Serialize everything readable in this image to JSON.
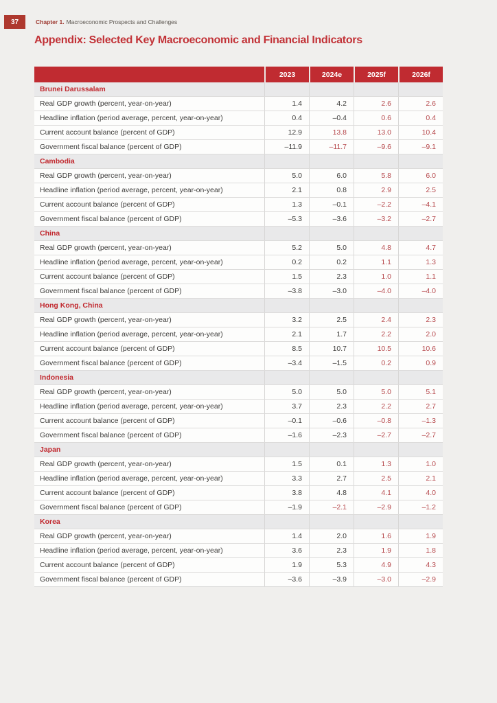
{
  "page": {
    "number": "37",
    "chapter_label": "Chapter 1.",
    "chapter_title": "Macroeconomic Prospects and Challenges",
    "title": "Appendix: Selected Key Macroeconomic and Financial Indicators"
  },
  "colors": {
    "header_bg": "#c02b31",
    "header_text": "#ffffff",
    "section_name_red": "#c1282e",
    "forecast_value_red": "#b6484c",
    "actual_value_dark": "#3d3c3a",
    "title_red": "#c23237",
    "page_badge_bg": "#ae382e",
    "section_row_bg": "#e9e9ea"
  },
  "table": {
    "columns": [
      "2023",
      "2024e",
      "2025f",
      "2026f"
    ],
    "row_labels": [
      "Real GDP growth (percent, year-on-year)",
      "Headline inflation (period average, percent, year-on-year)",
      "Current account balance (percent of GDP)",
      "Government fiscal balance (percent of GDP)"
    ],
    "sections": [
      {
        "name": "Brunei Darussalam",
        "values": [
          [
            "1.4",
            "4.2",
            "2.6",
            "2.6"
          ],
          [
            "0.4",
            "–0.4",
            "0.6",
            "0.4"
          ],
          [
            "12.9",
            "13.8",
            "13.0",
            "10.4"
          ],
          [
            "–11.9",
            "–11.7",
            "–9.6",
            "–9.1"
          ]
        ],
        "red": [
          [
            0,
            0,
            1,
            1
          ],
          [
            0,
            0,
            1,
            1
          ],
          [
            0,
            1,
            1,
            1
          ],
          [
            0,
            1,
            1,
            1
          ]
        ]
      },
      {
        "name": "Cambodia",
        "values": [
          [
            "5.0",
            "6.0",
            "5.8",
            "6.0"
          ],
          [
            "2.1",
            "0.8",
            "2.9",
            "2.5"
          ],
          [
            "1.3",
            "–0.1",
            "–2.2",
            "–4.1"
          ],
          [
            "–5.3",
            "–3.6",
            "–3.2",
            "–2.7"
          ]
        ],
        "red": [
          [
            0,
            0,
            1,
            1
          ],
          [
            0,
            0,
            1,
            1
          ],
          [
            0,
            0,
            1,
            1
          ],
          [
            0,
            0,
            1,
            1
          ]
        ]
      },
      {
        "name": "China",
        "values": [
          [
            "5.2",
            "5.0",
            "4.8",
            "4.7"
          ],
          [
            "0.2",
            "0.2",
            "1.1",
            "1.3"
          ],
          [
            "1.5",
            "2.3",
            "1.0",
            "1.1"
          ],
          [
            "–3.8",
            "–3.0",
            "–4.0",
            "–4.0"
          ]
        ],
        "red": [
          [
            0,
            0,
            1,
            1
          ],
          [
            0,
            0,
            1,
            1
          ],
          [
            0,
            0,
            1,
            1
          ],
          [
            0,
            0,
            1,
            1
          ]
        ]
      },
      {
        "name": "Hong Kong, China",
        "values": [
          [
            "3.2",
            "2.5",
            "2.4",
            "2.3"
          ],
          [
            "2.1",
            "1.7",
            "2.2",
            "2.0"
          ],
          [
            "8.5",
            "10.7",
            "10.5",
            "10.6"
          ],
          [
            "–3.4",
            "–1.5",
            "0.2",
            "0.9"
          ]
        ],
        "red": [
          [
            0,
            0,
            1,
            1
          ],
          [
            0,
            0,
            1,
            1
          ],
          [
            0,
            0,
            1,
            1
          ],
          [
            0,
            0,
            1,
            1
          ]
        ]
      },
      {
        "name": "Indonesia",
        "values": [
          [
            "5.0",
            "5.0",
            "5.0",
            "5.1"
          ],
          [
            "3.7",
            "2.3",
            "2.2",
            "2.7"
          ],
          [
            "–0.1",
            "–0.6",
            "–0.8",
            "–1.3"
          ],
          [
            "–1.6",
            "–2.3",
            "–2.7",
            "–2.7"
          ]
        ],
        "red": [
          [
            0,
            0,
            1,
            1
          ],
          [
            0,
            0,
            1,
            1
          ],
          [
            0,
            0,
            1,
            1
          ],
          [
            0,
            0,
            1,
            1
          ]
        ]
      },
      {
        "name": "Japan",
        "values": [
          [
            "1.5",
            "0.1",
            "1.3",
            "1.0"
          ],
          [
            "3.3",
            "2.7",
            "2.5",
            "2.1"
          ],
          [
            "3.8",
            "4.8",
            "4.1",
            "4.0"
          ],
          [
            "–1.9",
            "–2.1",
            "–2.9",
            "–1.2"
          ]
        ],
        "red": [
          [
            0,
            0,
            1,
            1
          ],
          [
            0,
            0,
            1,
            1
          ],
          [
            0,
            0,
            1,
            1
          ],
          [
            0,
            1,
            1,
            1
          ]
        ]
      },
      {
        "name": "Korea",
        "values": [
          [
            "1.4",
            "2.0",
            "1.6",
            "1.9"
          ],
          [
            "3.6",
            "2.3",
            "1.9",
            "1.8"
          ],
          [
            "1.9",
            "5.3",
            "4.9",
            "4.3"
          ],
          [
            "–3.6",
            "–3.9",
            "–3.0",
            "–2.9"
          ]
        ],
        "red": [
          [
            0,
            0,
            1,
            1
          ],
          [
            0,
            0,
            1,
            1
          ],
          [
            0,
            0,
            1,
            1
          ],
          [
            0,
            0,
            1,
            1
          ]
        ]
      }
    ]
  }
}
